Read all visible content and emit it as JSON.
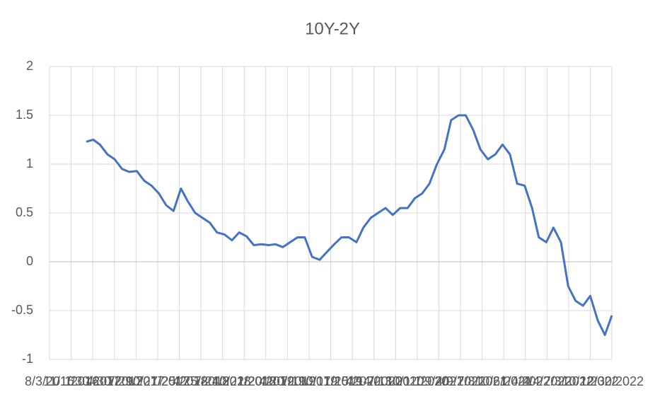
{
  "chart_data": {
    "type": "line",
    "title": "10Y-2Y",
    "x": [
      "1/3/2017",
      "2/1/2017",
      "3/1/2017",
      "4/1/2017",
      "5/1/2017",
      "6/1/2017",
      "7/1/2017",
      "8/1/2017",
      "9/1/2017",
      "10/1/2017",
      "11/1/2017",
      "12/1/2017",
      "1/1/2018",
      "2/1/2018",
      "3/1/2018",
      "4/1/2018",
      "5/1/2018",
      "6/1/2018",
      "7/1/2018",
      "8/1/2018",
      "9/1/2018",
      "10/1/2018",
      "11/1/2018",
      "12/1/2018",
      "1/1/2019",
      "2/1/2019",
      "3/1/2019",
      "4/1/2019",
      "5/1/2019",
      "6/1/2019",
      "7/1/2019",
      "8/1/2019",
      "9/1/2019",
      "10/1/2019",
      "11/1/2019",
      "12/1/2019",
      "1/1/2020",
      "2/1/2020",
      "3/1/2020",
      "4/1/2020",
      "5/1/2020",
      "6/1/2020",
      "7/1/2020",
      "8/1/2020",
      "9/1/2020",
      "10/1/2020",
      "11/1/2020",
      "12/1/2020",
      "1/1/2021",
      "2/1/2021",
      "3/1/2021",
      "4/1/2021",
      "5/1/2021",
      "6/1/2021",
      "7/1/2021",
      "8/1/2021",
      "9/1/2021",
      "10/1/2021",
      "11/1/2021",
      "12/1/2021",
      "1/1/2022",
      "2/1/2022",
      "3/1/2022",
      "4/1/2022",
      "5/1/2022",
      "6/1/2022",
      "7/1/2022",
      "8/1/2022",
      "9/1/2022",
      "10/1/2022",
      "11/1/2022",
      "12/1/2022",
      "12/30/2022"
    ],
    "values": [
      1.23,
      1.25,
      1.2,
      1.1,
      1.05,
      0.95,
      0.92,
      0.93,
      0.83,
      0.78,
      0.7,
      0.58,
      0.52,
      0.75,
      0.62,
      0.5,
      0.45,
      0.4,
      0.3,
      0.28,
      0.22,
      0.3,
      0.26,
      0.17,
      0.18,
      0.17,
      0.18,
      0.15,
      0.2,
      0.25,
      0.25,
      0.05,
      0.02,
      0.1,
      0.18,
      0.25,
      0.25,
      0.2,
      0.35,
      0.45,
      0.5,
      0.55,
      0.48,
      0.55,
      0.55,
      0.65,
      0.7,
      0.8,
      1.0,
      1.15,
      1.45,
      1.5,
      1.5,
      1.35,
      1.15,
      1.05,
      1.1,
      1.2,
      1.1,
      0.8,
      0.78,
      0.55,
      0.25,
      0.2,
      0.35,
      0.2,
      -0.25,
      -0.4,
      -0.45,
      -0.35,
      -0.6,
      -0.75,
      -0.55
    ],
    "color": "#4472c4",
    "xlim": [
      "8/3/2016",
      "12/30/2022"
    ],
    "xticks": [
      "8/3/2016",
      "11/1/2016",
      "1/30/2017",
      "4/30/2017",
      "7/29/2017",
      "10/27/2017",
      "1/25/2018",
      "4/25/2018",
      "7/24/2018",
      "10/22/2018",
      "1/20/2019",
      "4/20/2019",
      "7/19/2019",
      "10/17/2019",
      "1/15/2020",
      "4/14/2020",
      "7/13/2020",
      "10/11/2020",
      "1/9/2021",
      "4/9/2021",
      "7/8/2021",
      "10/6/2021",
      "1/4/2022",
      "4/4/2022",
      "7/3/2022",
      "10/1/2022",
      "12/30/2022"
    ],
    "ylim": [
      -1,
      2
    ],
    "yticks": [
      -1,
      -0.5,
      0,
      0.5,
      1,
      1.5,
      2
    ],
    "grid": true
  }
}
